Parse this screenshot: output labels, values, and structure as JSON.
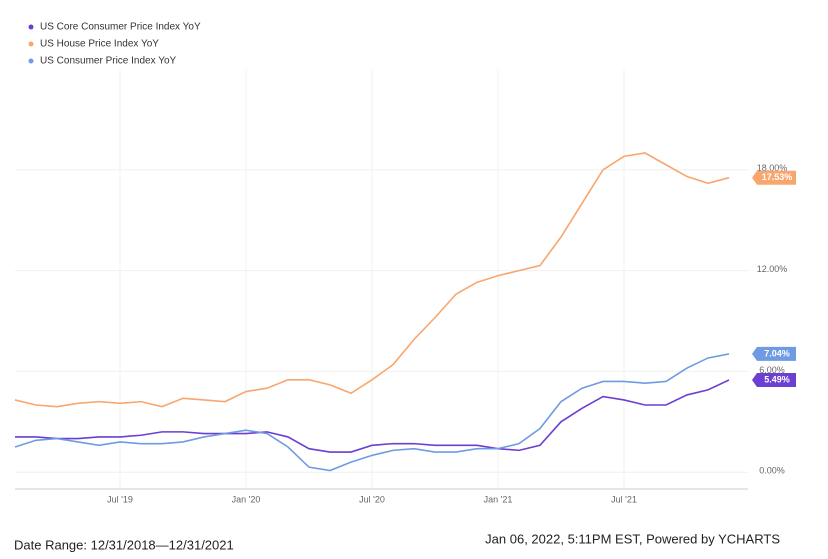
{
  "chart_data": {
    "type": "line",
    "categories": [
      null,
      null,
      null,
      null,
      null,
      "Jul '19",
      null,
      null,
      null,
      null,
      null,
      "Jan '20",
      null,
      null,
      null,
      null,
      null,
      "Jul '20",
      null,
      null,
      null,
      null,
      null,
      "Jan '21",
      null,
      null,
      null,
      null,
      null,
      "Jul '21",
      null,
      null,
      null,
      null,
      null
    ],
    "series": [
      {
        "name": "US Core Consumer Price Index YoY",
        "color": "#6b3fd1",
        "values": [
          2.1,
          2.1,
          2.0,
          2.0,
          2.1,
          2.1,
          2.2,
          2.4,
          2.4,
          2.3,
          2.3,
          2.3,
          2.4,
          2.1,
          1.4,
          1.2,
          1.2,
          1.6,
          1.7,
          1.7,
          1.6,
          1.6,
          1.6,
          1.4,
          1.3,
          1.6,
          3.0,
          3.8,
          4.5,
          4.3,
          4.0,
          4.0,
          4.6,
          4.9,
          5.49
        ],
        "value_labels": [
          null,
          null,
          null,
          null,
          null,
          null,
          null,
          null,
          null,
          null,
          null,
          null,
          null,
          null,
          null,
          null,
          null,
          null,
          null,
          null,
          null,
          null,
          null,
          null,
          null,
          null,
          null,
          null,
          null,
          null,
          null,
          null,
          null,
          null,
          "5.49%"
        ]
      },
      {
        "name": "US House Price Index YoY",
        "color": "#f8a66e",
        "values": [
          4.3,
          4.0,
          3.9,
          4.1,
          4.2,
          4.1,
          4.2,
          3.9,
          4.4,
          4.3,
          4.2,
          4.8,
          5.0,
          5.5,
          5.5,
          5.2,
          4.7,
          5.5,
          6.4,
          7.9,
          9.2,
          10.6,
          11.3,
          11.7,
          12.0,
          12.3,
          14.0,
          16.0,
          18.0,
          18.8,
          19.0,
          18.3,
          17.6,
          17.2,
          17.53
        ],
        "value_labels": [
          null,
          null,
          null,
          null,
          null,
          null,
          null,
          null,
          null,
          null,
          null,
          null,
          null,
          null,
          null,
          null,
          null,
          null,
          null,
          null,
          null,
          null,
          null,
          null,
          null,
          null,
          null,
          null,
          null,
          null,
          null,
          null,
          null,
          null,
          "17.53%"
        ]
      },
      {
        "name": "US Consumer Price Index YoY",
        "color": "#6f9be3",
        "values": [
          1.5,
          1.9,
          2.0,
          1.8,
          1.6,
          1.8,
          1.7,
          1.7,
          1.8,
          2.1,
          2.3,
          2.5,
          2.3,
          1.5,
          0.3,
          0.1,
          0.6,
          1.0,
          1.3,
          1.4,
          1.2,
          1.2,
          1.4,
          1.4,
          1.7,
          2.6,
          4.2,
          5.0,
          5.4,
          5.4,
          5.3,
          5.4,
          6.2,
          6.8,
          7.04
        ],
        "value_labels": [
          null,
          null,
          null,
          null,
          null,
          null,
          null,
          null,
          null,
          null,
          null,
          null,
          null,
          null,
          null,
          null,
          null,
          null,
          null,
          null,
          null,
          null,
          null,
          null,
          null,
          null,
          null,
          null,
          null,
          null,
          null,
          null,
          null,
          null,
          "7.04%"
        ]
      }
    ],
    "ylim": [
      -1,
      24
    ],
    "yticks": [
      {
        "value": 0,
        "label": "0.00%"
      },
      {
        "value": 6,
        "label": "6.00%"
      },
      {
        "value": 12,
        "label": "12.00%"
      },
      {
        "value": 18,
        "label": "18.00%"
      }
    ],
    "grid": true,
    "legend": "top-left",
    "footer": {
      "left": "Date Range: 12/31/2018—12/31/2021",
      "right": "Jan 06, 2022, 5:11PM EST, Powered by YCHARTS"
    }
  }
}
